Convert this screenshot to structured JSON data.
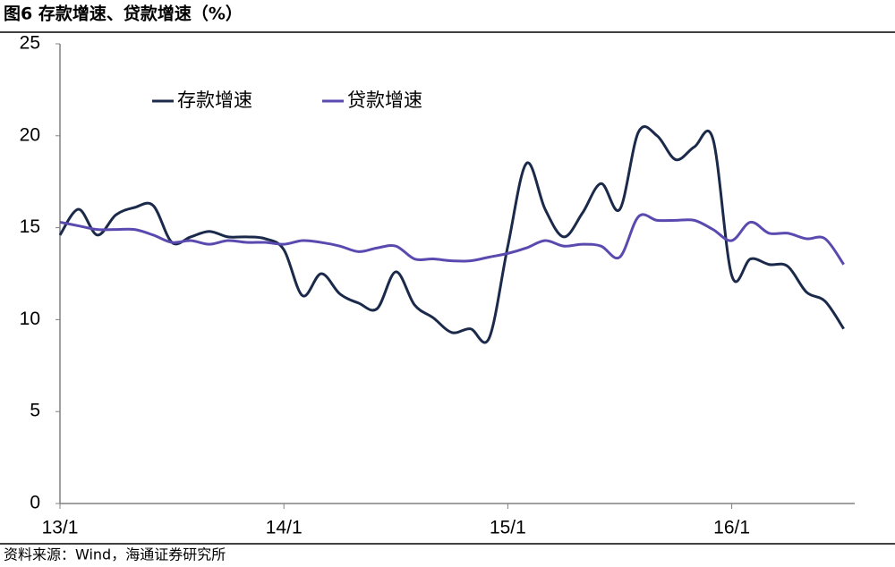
{
  "chart_data": {
    "type": "line",
    "title": "图6  存款增速、贷款增速（%）",
    "source": "资料来源：Wind，海通证券研究所",
    "categories": [
      "13/1",
      null,
      null,
      null,
      null,
      null,
      null,
      null,
      null,
      null,
      null,
      null,
      "14/1",
      null,
      null,
      null,
      null,
      null,
      null,
      null,
      null,
      null,
      null,
      null,
      "15/1",
      null,
      null,
      null,
      null,
      null,
      null,
      null,
      null,
      null,
      null,
      null,
      "16/1",
      null,
      null,
      null,
      null,
      null,
      null
    ],
    "series": [
      {
        "name": "存款增速",
        "color": "#1b2a4a",
        "values": [
          14.6,
          16.0,
          14.6,
          15.7,
          16.1,
          16.2,
          14.2,
          14.5,
          14.8,
          14.5,
          14.5,
          14.4,
          13.8,
          11.3,
          12.5,
          11.4,
          10.9,
          10.6,
          12.6,
          10.8,
          10.1,
          9.3,
          9.5,
          9.0,
          14.0,
          18.5,
          16.0,
          14.5,
          15.8,
          17.4,
          16.0,
          20.2,
          20.0,
          18.7,
          19.4,
          19.8,
          12.4,
          13.3,
          13.0,
          12.9,
          11.5,
          11.0,
          9.5
        ]
      },
      {
        "name": "贷款增速",
        "color": "#5a4ab0",
        "values": [
          15.3,
          15.1,
          14.9,
          14.9,
          14.9,
          14.6,
          14.2,
          14.3,
          14.1,
          14.3,
          14.2,
          14.2,
          14.1,
          14.3,
          14.2,
          14.0,
          13.7,
          13.9,
          14.0,
          13.3,
          13.3,
          13.2,
          13.2,
          13.4,
          13.6,
          13.9,
          14.3,
          14.0,
          14.1,
          14.0,
          13.4,
          15.6,
          15.4,
          15.4,
          15.4,
          14.9,
          14.3,
          15.3,
          14.7,
          14.7,
          14.4,
          14.4,
          13.0
        ]
      }
    ],
    "ylim": [
      0,
      25
    ],
    "yticks": [
      0,
      5,
      10,
      15,
      20,
      25
    ]
  }
}
